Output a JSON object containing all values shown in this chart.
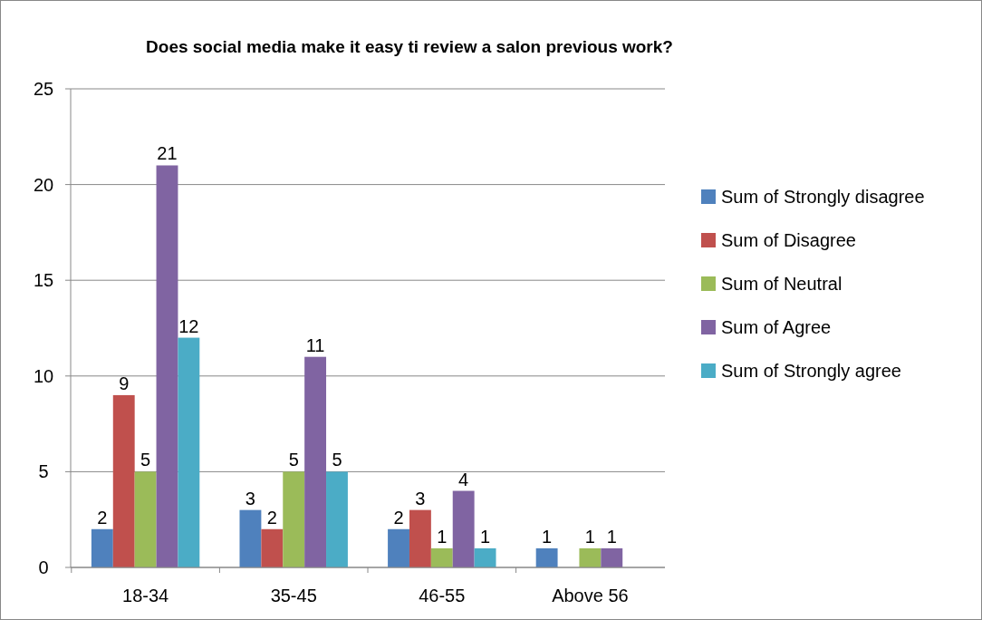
{
  "chart_data": {
    "type": "bar",
    "title": "Does social media make it easy ti review a salon previous work?",
    "categories": [
      "18-34",
      "35-45",
      "46-55",
      "Above 56"
    ],
    "series": [
      {
        "name": "Sum of Strongly disagree",
        "color": "#4f81bd",
        "values": [
          2,
          3,
          2,
          1
        ],
        "value_labels": [
          "2",
          "3",
          "2",
          "1"
        ]
      },
      {
        "name": "Sum of Disagree",
        "color": "#c0504d",
        "values": [
          9,
          2,
          3,
          null
        ],
        "value_labels": [
          "9",
          "2",
          "3",
          null
        ]
      },
      {
        "name": "Sum of Neutral",
        "color": "#9bbb59",
        "values": [
          5,
          5,
          1,
          1
        ],
        "value_labels": [
          "5",
          "5",
          "1",
          "1"
        ]
      },
      {
        "name": "Sum of Agree",
        "color": "#8064a2",
        "values": [
          21,
          11,
          4,
          1
        ],
        "value_labels": [
          "21",
          "11",
          "4",
          "1"
        ]
      },
      {
        "name": "Sum of Strongly agree",
        "color": "#4bacc6",
        "values": [
          12,
          5,
          1,
          null
        ],
        "value_labels": [
          "12",
          "5",
          "1",
          null
        ]
      }
    ],
    "ylim": [
      0,
      25
    ],
    "yticks": [
      0,
      5,
      10,
      15,
      20,
      25
    ],
    "grid": "y",
    "legend": "right"
  }
}
